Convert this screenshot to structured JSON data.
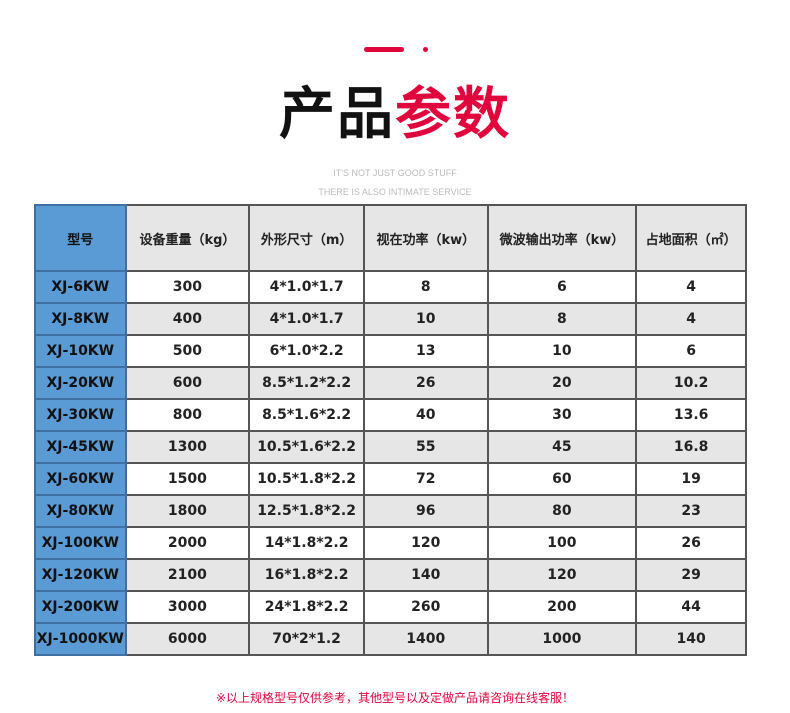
{
  "header": {
    "title_black": "产品",
    "title_red": "参数",
    "subtitle1": "IT'S NOT JUST GOOD STUFF",
    "subtitle2": "THERE IS ALSO INTIMATE SERVICE",
    "accent": "#e0053c"
  },
  "table": {
    "columns": [
      "型号",
      "设备重量（kg）",
      "外形尺寸（m）",
      "视在功率（kw）",
      "微波输出功率（kw）",
      "占地面积（㎡）"
    ],
    "rows": [
      [
        "XJ-6KW",
        "300",
        "4*1.0*1.7",
        "8",
        "6",
        "4"
      ],
      [
        "XJ-8KW",
        "400",
        "4*1.0*1.7",
        "10",
        "8",
        "4"
      ],
      [
        "XJ-10KW",
        "500",
        "6*1.0*2.2",
        "13",
        "10",
        "6"
      ],
      [
        "XJ-20KW",
        "600",
        "8.5*1.2*2.2",
        "26",
        "20",
        "10.2"
      ],
      [
        "XJ-30KW",
        "800",
        "8.5*1.6*2.2",
        "40",
        "30",
        "13.6"
      ],
      [
        "XJ-45KW",
        "1300",
        "10.5*1.6*2.2",
        "55",
        "45",
        "16.8"
      ],
      [
        "XJ-60KW",
        "1500",
        "10.5*1.8*2.2",
        "72",
        "60",
        "19"
      ],
      [
        "XJ-80KW",
        "1800",
        "12.5*1.8*2.2",
        "96",
        "80",
        "23"
      ],
      [
        "XJ-100KW",
        "2000",
        "14*1.8*2.2",
        "120",
        "100",
        "26"
      ],
      [
        "XJ-120KW",
        "2100",
        "16*1.8*2.2",
        "140",
        "120",
        "29"
      ],
      [
        "XJ-200KW",
        "3000",
        "24*1.8*2.2",
        "260",
        "200",
        "44"
      ],
      [
        "XJ-1000KW",
        "6000",
        "70*2*1.2",
        "1400",
        "1000",
        "140"
      ]
    ]
  },
  "footer": {
    "note": "※以上规格型号仅供参考，其他型号以及定做产品请咨询在线客服！"
  }
}
